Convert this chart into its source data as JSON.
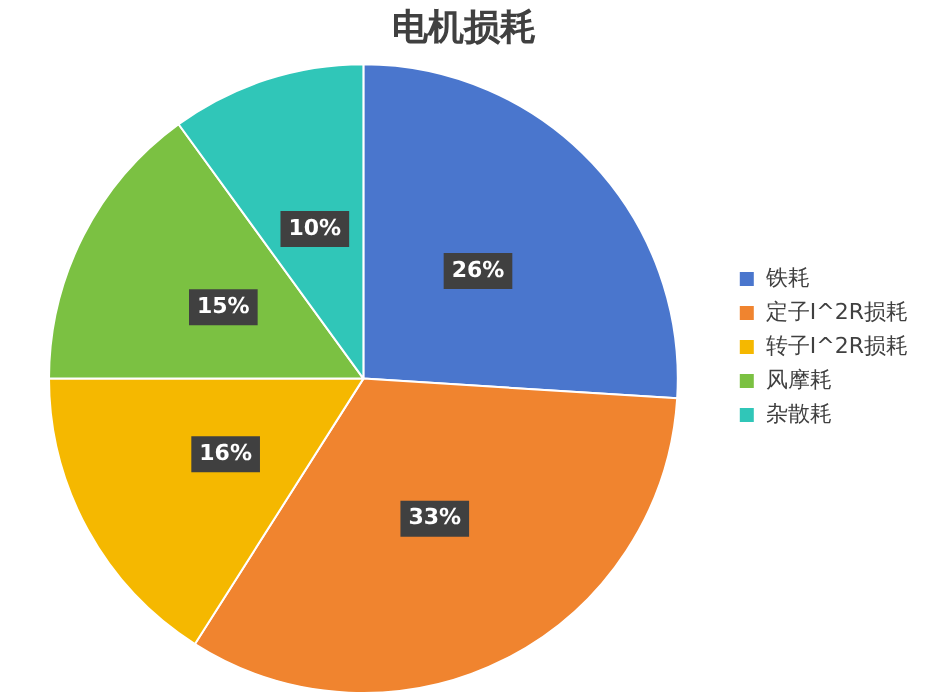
{
  "chart_data": {
    "type": "pie",
    "title": "电机损耗",
    "categories": [
      "铁耗",
      "定子I^2R损耗",
      "转子I^2R损耗",
      "风摩耗",
      "杂散耗"
    ],
    "values": [
      26,
      33,
      16,
      15,
      10
    ],
    "value_labels": [
      "26%",
      "33%",
      "16%",
      "15%",
      "10%"
    ],
    "colors": [
      "#4a76cd",
      "#f0842f",
      "#f5b800",
      "#7bc142",
      "#30c6b8"
    ],
    "legend": "right"
  }
}
